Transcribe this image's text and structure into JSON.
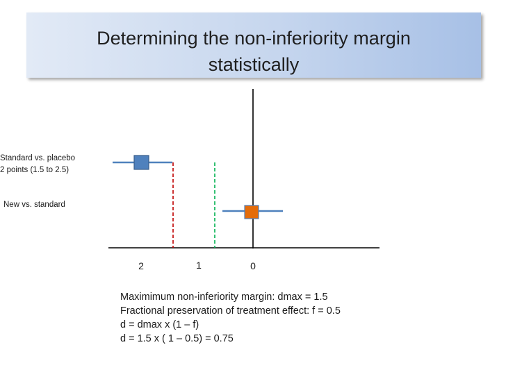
{
  "title": {
    "line1": "Determining the non-inferiority margin",
    "line2": "statistically"
  },
  "labels": {
    "standard_vs_placebo_line1": "Standard vs. placebo",
    "standard_vs_placebo_line2": "2 points  (1.5 to 2.5)",
    "new_vs_standard": "New vs. standard"
  },
  "axis": {
    "tick_labels": [
      "2",
      "1",
      "0"
    ]
  },
  "formulas": [
    "Maximimum non-inferiority margin:  dmax = 1.5",
    "Fractional preservation of treatment effect:  f = 0.5",
    "d = dmax x (1 – f)",
    "d = 1.5 x ( 1 – 0.5) = 0.75"
  ],
  "colors": {
    "interval_line": "#4f81bd",
    "standard_marker": "#4f81bd",
    "new_marker": "#e46c0a",
    "dmax_dashed": "#c00000",
    "margin_dashed": "#00b050",
    "axis": "#000000"
  },
  "estimates": {
    "standard_vs_placebo": {
      "point": 2,
      "low": 1.5,
      "high": 2.5
    },
    "new_vs_standard": {
      "point": 0
    }
  }
}
